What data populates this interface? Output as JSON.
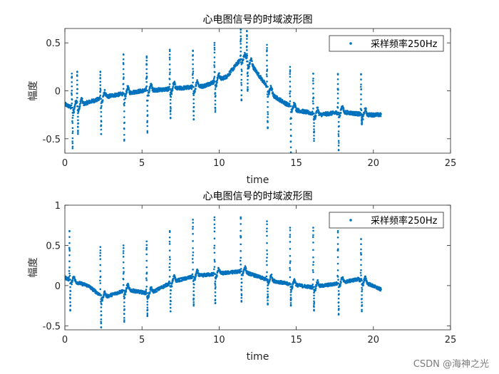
{
  "figure_background": "#ffffff",
  "watermark": "CSDN @海神之光",
  "chart_data": [
    {
      "type": "scatter",
      "title": "心电图信号的时域波形图",
      "xlabel": "time",
      "ylabel": "幅度",
      "xlim": [
        0,
        25
      ],
      "ylim": [
        -0.65,
        0.65
      ],
      "xticks": [
        0,
        5,
        10,
        15,
        20,
        25
      ],
      "yticks": [
        -0.5,
        0,
        0.5
      ],
      "legend": "采样频率250Hz",
      "legend_position": "top-right",
      "grid": false,
      "color": "#0072BD",
      "signal_end": 20.5,
      "beats": [
        0.45,
        0.8,
        2.3,
        3.8,
        5.3,
        6.8,
        8.3,
        9.7,
        11.4,
        11.8,
        13.1,
        14.6,
        16.1,
        17.7,
        19.2
      ],
      "r_peaks": [
        0.18,
        0.2,
        0.2,
        0.38,
        0.36,
        0.43,
        0.42,
        0.5,
        0.65,
        0.62,
        0.48,
        0.25,
        0.18,
        0.17,
        0.17
      ],
      "s_troughs": [
        -0.6,
        -0.45,
        -0.45,
        -0.52,
        -0.42,
        -0.28,
        -0.3,
        -0.22,
        -0.1,
        0.0,
        -0.38,
        -0.65,
        -0.5,
        -0.62,
        -0.35
      ],
      "baseline": [
        [
          0,
          -0.14
        ],
        [
          0.5,
          -0.18
        ],
        [
          1.5,
          -0.12
        ],
        [
          3,
          -0.05
        ],
        [
          5,
          0.0
        ],
        [
          7,
          0.02
        ],
        [
          9,
          0.05
        ],
        [
          10.5,
          0.15
        ],
        [
          11.5,
          0.35
        ],
        [
          12.2,
          0.25
        ],
        [
          13.5,
          -0.05
        ],
        [
          15,
          -0.2
        ],
        [
          16.5,
          -0.25
        ],
        [
          18,
          -0.22
        ],
        [
          19.5,
          -0.25
        ],
        [
          20.5,
          -0.25
        ]
      ]
    },
    {
      "type": "scatter",
      "title": "心电图信号的时域波形图",
      "xlabel": "time",
      "ylabel": "幅度",
      "xlim": [
        0,
        25
      ],
      "ylim": [
        -0.55,
        1.0
      ],
      "xticks": [
        0,
        5,
        10,
        15,
        20,
        25
      ],
      "yticks": [
        -0.5,
        0,
        0.5,
        1
      ],
      "legend": "采样频率250Hz",
      "legend_position": "top-right",
      "grid": false,
      "color": "#0072BD",
      "signal_end": 20.5,
      "beats": [
        0.3,
        2.3,
        3.8,
        5.3,
        6.8,
        8.3,
        9.7,
        11.4,
        13.1,
        14.6,
        16.1,
        17.7,
        19.2
      ],
      "r_peaks": [
        0.68,
        0.48,
        0.5,
        0.55,
        0.68,
        0.82,
        0.85,
        0.85,
        0.8,
        0.72,
        0.72,
        0.68,
        0.58
      ],
      "s_troughs": [
        -0.3,
        -0.52,
        -0.45,
        -0.38,
        -0.32,
        -0.25,
        -0.22,
        -0.2,
        -0.22,
        -0.25,
        -0.3,
        -0.35,
        -0.3
      ],
      "baseline": [
        [
          0,
          0.1
        ],
        [
          0.6,
          0.05
        ],
        [
          1.5,
          0.0
        ],
        [
          2.5,
          -0.15
        ],
        [
          4,
          -0.05
        ],
        [
          5.5,
          -0.1
        ],
        [
          7,
          0.05
        ],
        [
          8.5,
          0.12
        ],
        [
          10,
          0.15
        ],
        [
          11.5,
          0.18
        ],
        [
          13,
          0.08
        ],
        [
          14.5,
          0.02
        ],
        [
          16,
          -0.02
        ],
        [
          17.5,
          0.02
        ],
        [
          19,
          0.08
        ],
        [
          20.5,
          -0.05
        ]
      ]
    }
  ]
}
